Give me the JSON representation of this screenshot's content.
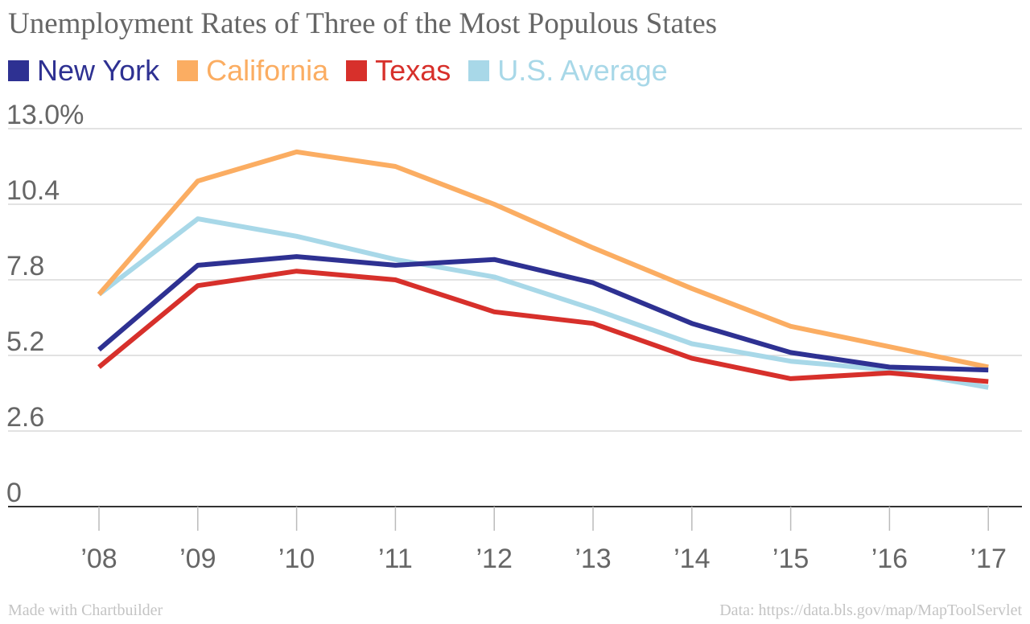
{
  "chart_data": {
    "type": "line",
    "title": "Unemployment Rates of Three of the Most Populous States",
    "categories": [
      "’08",
      "’09",
      "’10",
      "’11",
      "’12",
      "’13",
      "’14",
      "’15",
      "’16",
      "’17"
    ],
    "y_tick_labels": [
      "0",
      "2.6",
      "5.2",
      "7.8",
      "10.4",
      "13.0%"
    ],
    "y_ticks": [
      0,
      2.6,
      5.2,
      7.8,
      10.4,
      13.0
    ],
    "ylim": [
      0,
      13.0
    ],
    "xlabel": "",
    "ylabel": "",
    "grid": true,
    "legend_position": "top-left",
    "series": [
      {
        "name": "New York",
        "color": "#2e3192",
        "values": [
          5.4,
          8.3,
          8.6,
          8.3,
          8.5,
          7.7,
          6.3,
          5.3,
          4.8,
          4.7
        ]
      },
      {
        "name": "California",
        "color": "#fbad62",
        "values": [
          7.3,
          11.2,
          12.2,
          11.7,
          10.4,
          8.9,
          7.5,
          6.2,
          5.5,
          4.8
        ]
      },
      {
        "name": "Texas",
        "color": "#d7302b",
        "values": [
          4.8,
          7.6,
          8.1,
          7.8,
          6.7,
          6.3,
          5.1,
          4.4,
          4.6,
          4.3
        ]
      },
      {
        "name": "U.S. Average",
        "color": "#a8d8e8",
        "values": [
          7.3,
          9.9,
          9.3,
          8.5,
          7.9,
          6.8,
          5.6,
          5.0,
          4.7,
          4.1
        ]
      }
    ]
  },
  "footer": {
    "left": "Made with Chartbuilder",
    "right": "Data: https://data.bls.gov/map/MapToolServlet"
  }
}
